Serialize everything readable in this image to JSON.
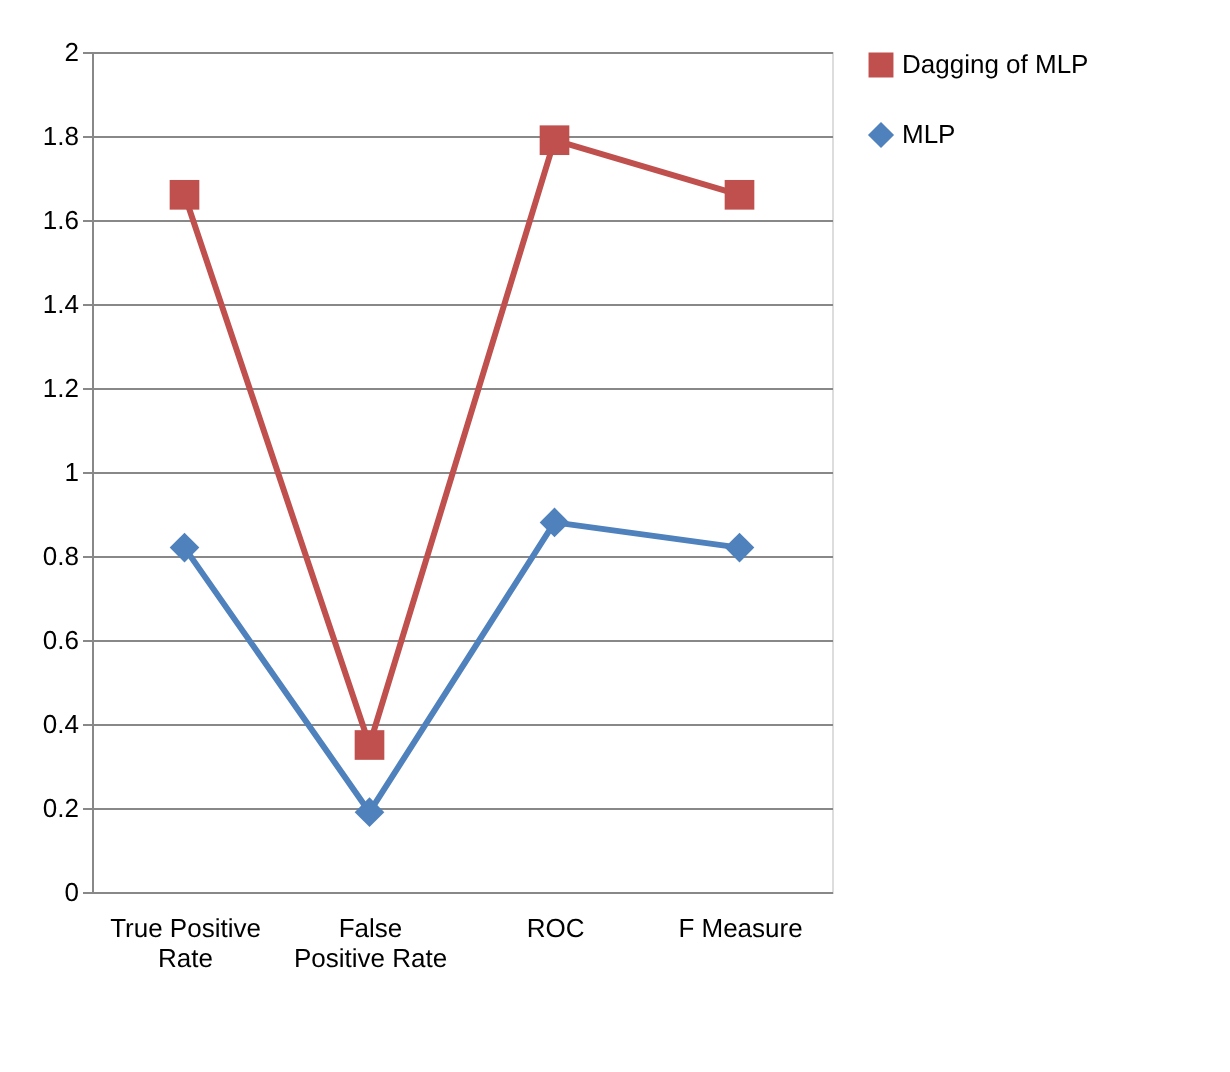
{
  "chart_data": {
    "type": "line",
    "categories": [
      "True Positive Rate",
      "False Positive Rate",
      "ROC",
      "F Measure"
    ],
    "series": [
      {
        "name": "Dagging of MLP",
        "color": "#c0504d",
        "marker": "square",
        "values": [
          1.66,
          0.35,
          1.79,
          1.66
        ]
      },
      {
        "name": "MLP",
        "color": "#4f81bd",
        "marker": "diamond",
        "values": [
          0.82,
          0.19,
          0.88,
          0.82
        ]
      }
    ],
    "ylim": [
      0,
      2
    ],
    "yticks": [
      0,
      0.2,
      0.4,
      0.6,
      0.8,
      1,
      1.2,
      1.4,
      1.6,
      1.8,
      2
    ],
    "grid": "y",
    "legend": "right"
  }
}
